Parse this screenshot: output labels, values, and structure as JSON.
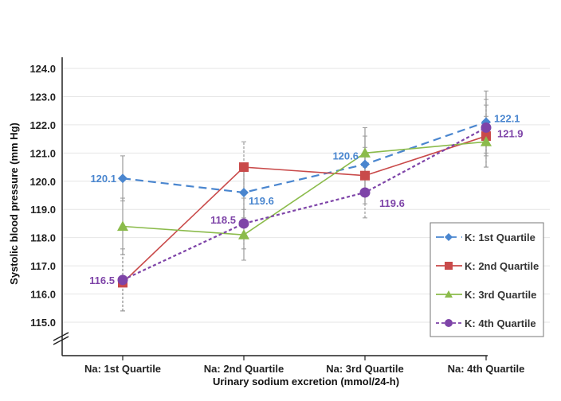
{
  "chart_data": {
    "type": "line",
    "title": "",
    "xlabel": "Urinary sodium excretion (mmol/24-h)",
    "ylabel": "Systolic blood pressure (mm Hg)",
    "ylim": [
      115.0,
      124.0
    ],
    "axis_break": true,
    "grid": true,
    "yticks": [
      "115.0",
      "116.0",
      "117.0",
      "118.0",
      "119.0",
      "120.0",
      "121.0",
      "122.0",
      "123.0",
      "124.0"
    ],
    "categories": [
      "Na: 1st Quartile",
      "Na: 2nd Quartile",
      "Na: 3rd Quartile",
      "Na: 4th Quartile"
    ],
    "legend_position": "bottom-right",
    "series": [
      {
        "name": "K: 1st Quartile",
        "color": "#4a86cf",
        "marker": "diamond",
        "dash": "10,6",
        "values": [
          120.1,
          119.6,
          120.6,
          122.1
        ],
        "errors": [
          0.8,
          0.9,
          1.0,
          1.1
        ],
        "labels": [
          "120.1",
          "119.6",
          "120.6",
          "122.1"
        ]
      },
      {
        "name": "K: 2nd Quartile",
        "color": "#c94a4a",
        "marker": "square",
        "dash": "",
        "values": [
          116.4,
          120.5,
          120.2,
          121.6
        ],
        "errors": [
          1.0,
          0.9,
          1.0,
          1.1
        ],
        "labels": []
      },
      {
        "name": "K: 3rd Quartile",
        "color": "#8bbb4b",
        "marker": "triangle",
        "dash": "",
        "values": [
          118.4,
          118.1,
          121.0,
          121.4
        ],
        "errors": [
          1.0,
          0.9,
          0.9,
          0.9
        ],
        "labels": []
      },
      {
        "name": "K: 4th Quartile",
        "color": "#7e44a8",
        "marker": "circle",
        "dash": "4,3",
        "values": [
          116.5,
          118.5,
          119.6,
          121.9
        ],
        "errors": [
          1.1,
          0.9,
          0.9,
          1.0
        ],
        "labels": [
          "116.5",
          "118.5",
          "119.6",
          "121.9"
        ]
      }
    ]
  }
}
